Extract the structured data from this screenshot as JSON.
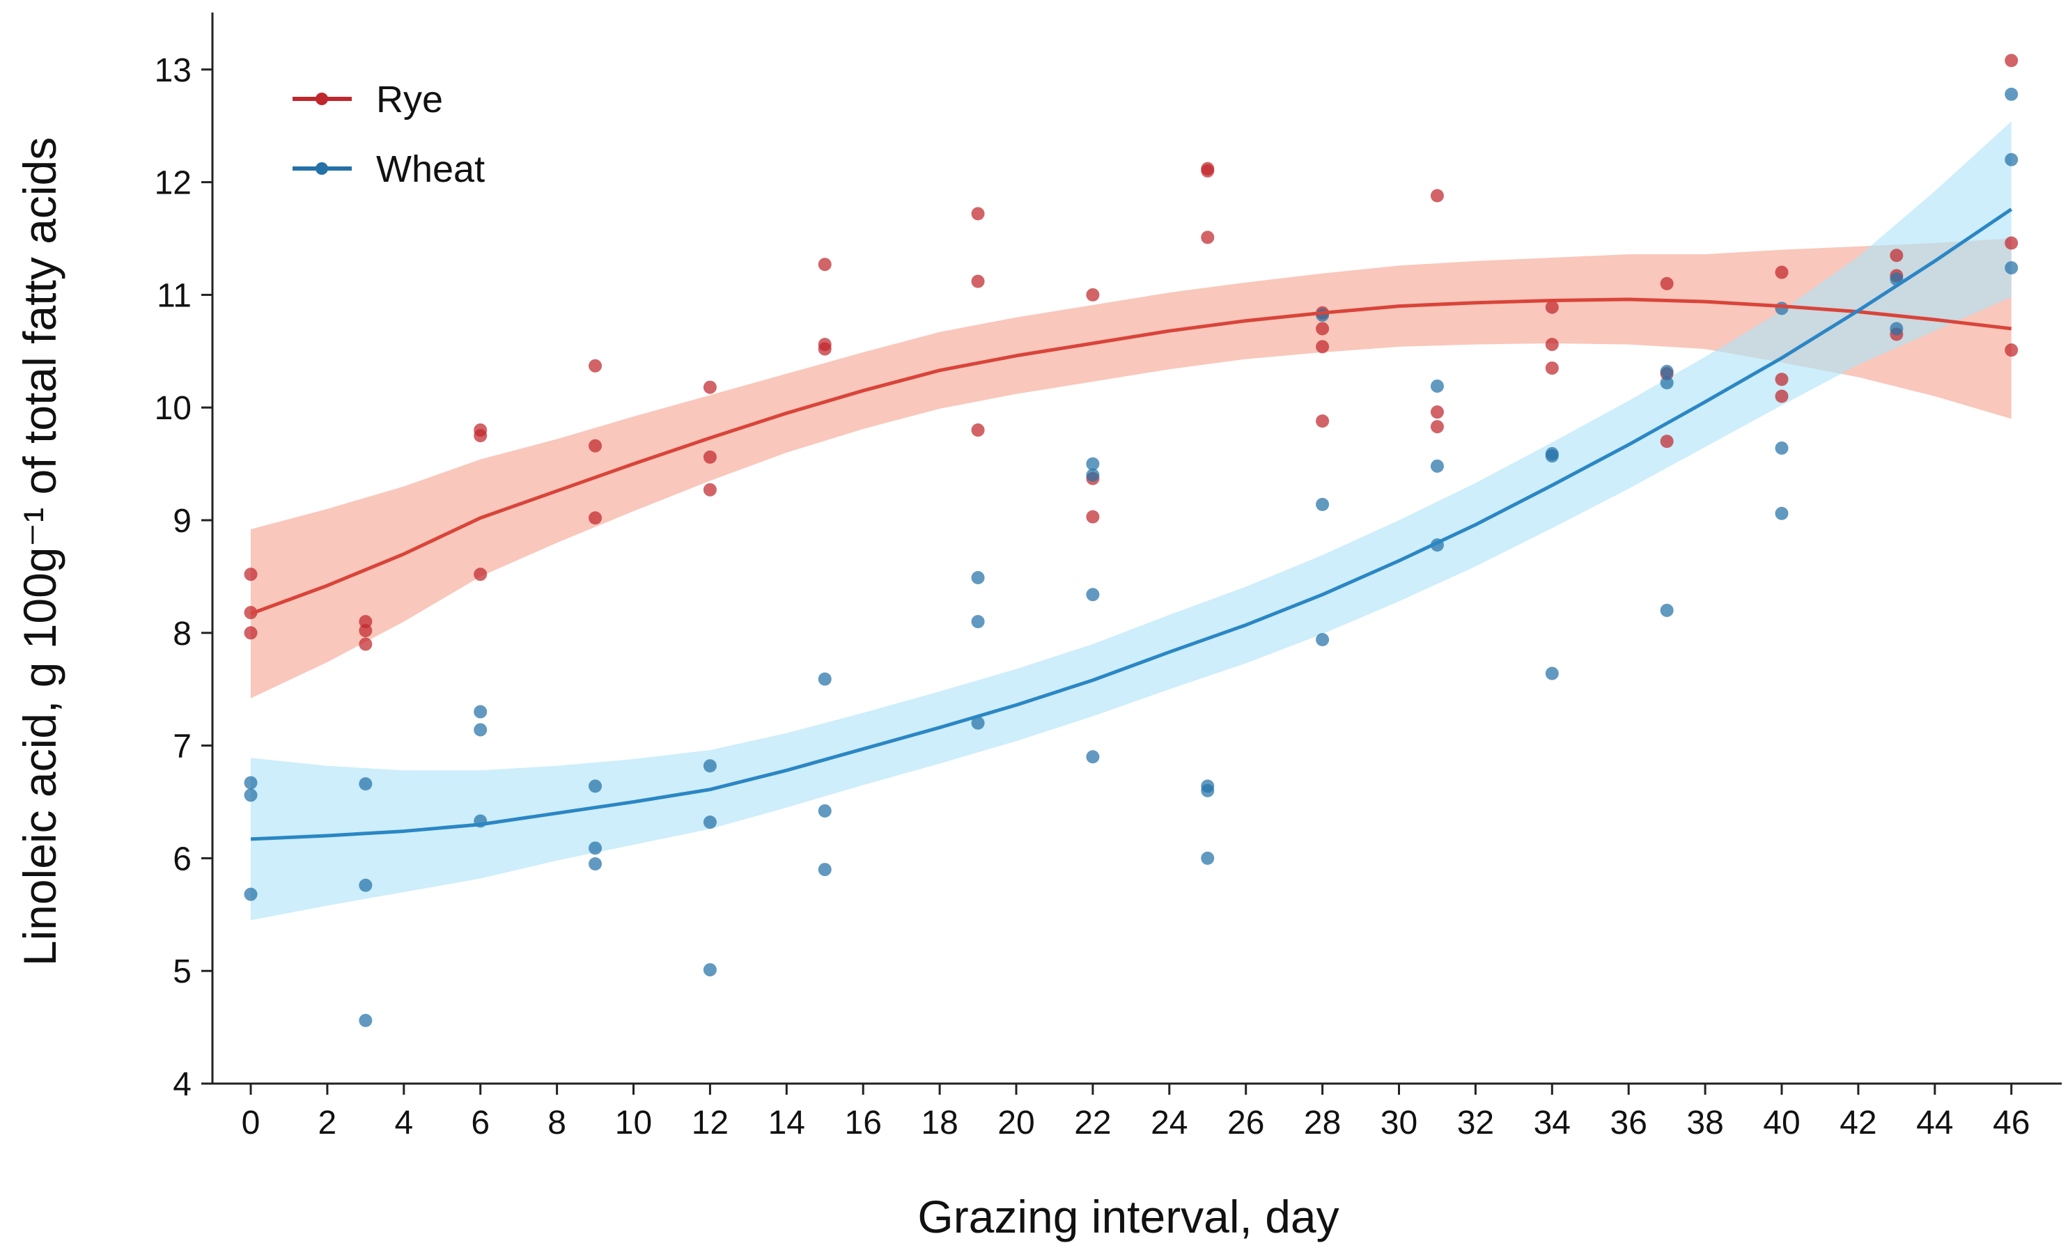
{
  "chart_data": {
    "type": "scatter",
    "title": "",
    "xlabel": "Grazing interval, day",
    "ylabel": "Linoleic acid, g 100g⁻¹ of total fatty acids",
    "xlim": [
      -1,
      47
    ],
    "ylim": [
      4,
      13.5
    ],
    "xticks": [
      0,
      2,
      4,
      6,
      8,
      10,
      12,
      14,
      16,
      18,
      20,
      22,
      24,
      26,
      28,
      30,
      32,
      34,
      36,
      38,
      40,
      42,
      44,
      46
    ],
    "yticks": [
      4,
      5,
      6,
      7,
      8,
      9,
      10,
      11,
      12,
      13
    ],
    "grid": false,
    "legend_position": "top-left",
    "series": [
      {
        "name": "Rye",
        "color": "#c0272d",
        "line_color": "#d9443a",
        "band_color": "#f6a592",
        "points": [
          [
            0,
            8.52
          ],
          [
            0,
            8.0
          ],
          [
            0,
            8.18
          ],
          [
            3,
            8.1
          ],
          [
            3,
            8.02
          ],
          [
            3,
            7.9
          ],
          [
            6,
            9.8
          ],
          [
            6,
            9.75
          ],
          [
            6,
            8.52
          ],
          [
            9,
            10.37
          ],
          [
            9,
            9.66
          ],
          [
            9,
            9.02
          ],
          [
            12,
            10.18
          ],
          [
            12,
            9.56
          ],
          [
            12,
            9.27
          ],
          [
            15,
            11.27
          ],
          [
            15,
            10.56
          ],
          [
            15,
            10.52
          ],
          [
            19,
            11.72
          ],
          [
            19,
            11.12
          ],
          [
            19,
            9.8
          ],
          [
            22,
            11.0
          ],
          [
            22,
            9.37
          ],
          [
            22,
            9.03
          ],
          [
            25,
            12.1
          ],
          [
            25,
            12.12
          ],
          [
            25,
            11.51
          ],
          [
            28,
            10.84
          ],
          [
            28,
            10.7
          ],
          [
            28,
            10.54
          ],
          [
            28,
            9.88
          ],
          [
            31,
            11.88
          ],
          [
            31,
            9.96
          ],
          [
            31,
            9.83
          ],
          [
            34,
            10.89
          ],
          [
            34,
            10.56
          ],
          [
            34,
            10.35
          ],
          [
            37,
            11.1
          ],
          [
            37,
            10.3
          ],
          [
            37,
            9.7
          ],
          [
            40,
            11.2
          ],
          [
            40,
            10.25
          ],
          [
            40,
            10.1
          ],
          [
            43,
            11.35
          ],
          [
            43,
            11.17
          ],
          [
            43,
            10.65
          ],
          [
            46,
            13.08
          ],
          [
            46,
            11.46
          ],
          [
            46,
            10.51
          ]
        ],
        "fit": [
          [
            0,
            8.17
          ],
          [
            2,
            8.42
          ],
          [
            4,
            8.7
          ],
          [
            6,
            9.02
          ],
          [
            8,
            9.26
          ],
          [
            10,
            9.5
          ],
          [
            12,
            9.73
          ],
          [
            14,
            9.95
          ],
          [
            16,
            10.15
          ],
          [
            18,
            10.33
          ],
          [
            20,
            10.46
          ],
          [
            22,
            10.57
          ],
          [
            24,
            10.68
          ],
          [
            26,
            10.77
          ],
          [
            28,
            10.84
          ],
          [
            30,
            10.9
          ],
          [
            32,
            10.93
          ],
          [
            34,
            10.95
          ],
          [
            36,
            10.96
          ],
          [
            38,
            10.94
          ],
          [
            40,
            10.9
          ],
          [
            42,
            10.85
          ],
          [
            44,
            10.78
          ],
          [
            46,
            10.7
          ]
        ],
        "band_half_width": [
          0.75,
          0.68,
          0.6,
          0.52,
          0.46,
          0.42,
          0.38,
          0.35,
          0.34,
          0.34,
          0.34,
          0.34,
          0.34,
          0.34,
          0.35,
          0.36,
          0.37,
          0.38,
          0.4,
          0.42,
          0.5,
          0.58,
          0.68,
          0.8
        ]
      },
      {
        "name": "Wheat",
        "color": "#2471a8",
        "line_color": "#2b86c4",
        "band_color": "#aee3f7",
        "points": [
          [
            0,
            6.67
          ],
          [
            0,
            6.56
          ],
          [
            0,
            5.68
          ],
          [
            3,
            6.66
          ],
          [
            3,
            5.76
          ],
          [
            3,
            4.56
          ],
          [
            6,
            7.3
          ],
          [
            6,
            7.14
          ],
          [
            6,
            6.33
          ],
          [
            9,
            6.64
          ],
          [
            9,
            6.09
          ],
          [
            9,
            5.95
          ],
          [
            12,
            6.82
          ],
          [
            12,
            6.32
          ],
          [
            12,
            5.01
          ],
          [
            15,
            7.59
          ],
          [
            15,
            6.42
          ],
          [
            15,
            5.9
          ],
          [
            19,
            8.49
          ],
          [
            19,
            8.1
          ],
          [
            19,
            7.2
          ],
          [
            22,
            9.5
          ],
          [
            22,
            9.4
          ],
          [
            22,
            8.34
          ],
          [
            22,
            6.9
          ],
          [
            25,
            6.64
          ],
          [
            25,
            6.6
          ],
          [
            25,
            6.0
          ],
          [
            28,
            10.82
          ],
          [
            28,
            9.14
          ],
          [
            28,
            7.94
          ],
          [
            31,
            10.19
          ],
          [
            31,
            9.48
          ],
          [
            31,
            8.78
          ],
          [
            34,
            9.59
          ],
          [
            34,
            9.57
          ],
          [
            34,
            7.64
          ],
          [
            37,
            10.32
          ],
          [
            37,
            10.22
          ],
          [
            37,
            8.2
          ],
          [
            40,
            10.88
          ],
          [
            40,
            9.64
          ],
          [
            40,
            9.06
          ],
          [
            43,
            11.14
          ],
          [
            43,
            10.7
          ],
          [
            46,
            12.78
          ],
          [
            46,
            12.2
          ],
          [
            46,
            11.24
          ]
        ],
        "fit": [
          [
            0,
            6.17
          ],
          [
            2,
            6.2
          ],
          [
            4,
            6.24
          ],
          [
            6,
            6.3
          ],
          [
            8,
            6.4
          ],
          [
            10,
            6.5
          ],
          [
            12,
            6.61
          ],
          [
            14,
            6.78
          ],
          [
            16,
            6.97
          ],
          [
            18,
            7.16
          ],
          [
            20,
            7.36
          ],
          [
            22,
            7.58
          ],
          [
            24,
            7.83
          ],
          [
            26,
            8.07
          ],
          [
            28,
            8.34
          ],
          [
            30,
            8.64
          ],
          [
            32,
            8.96
          ],
          [
            34,
            9.31
          ],
          [
            36,
            9.67
          ],
          [
            38,
            10.05
          ],
          [
            40,
            10.44
          ],
          [
            42,
            10.86
          ],
          [
            44,
            11.3
          ],
          [
            46,
            11.76
          ]
        ],
        "band_half_width": [
          0.72,
          0.62,
          0.54,
          0.48,
          0.42,
          0.38,
          0.35,
          0.33,
          0.32,
          0.32,
          0.32,
          0.32,
          0.33,
          0.34,
          0.35,
          0.36,
          0.37,
          0.38,
          0.39,
          0.4,
          0.42,
          0.48,
          0.62,
          0.78
        ]
      }
    ]
  }
}
